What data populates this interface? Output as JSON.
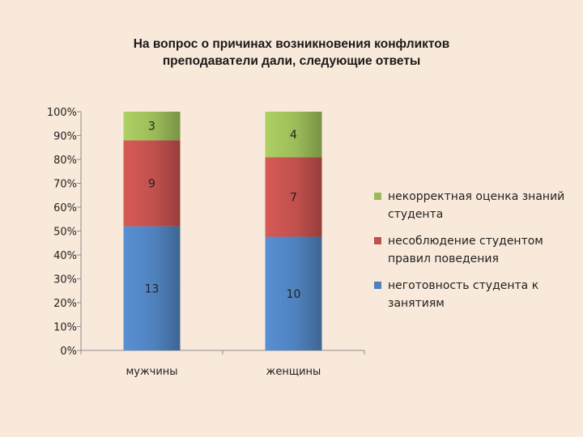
{
  "title_lines": [
    "На вопрос о причинах возникновения конфликтов",
    "преподаватели дали, следующие ответы"
  ],
  "chart_data": {
    "type": "bar",
    "stacked": "percent",
    "categories": [
      "мужчины",
      "женщины"
    ],
    "series": [
      {
        "name": "неготовность студента к занятиям",
        "values": [
          13,
          10
        ],
        "color": "#4f81bd"
      },
      {
        "name": "несоблюдение студентом правил поведения",
        "values": [
          9,
          7
        ],
        "color": "#c0504d"
      },
      {
        "name": "некорректная оценка знаний студента",
        "values": [
          3,
          4
        ],
        "color": "#9bbb59"
      }
    ],
    "y_ticks": [
      "0%",
      "10%",
      "20%",
      "30%",
      "40%",
      "50%",
      "60%",
      "70%",
      "80%",
      "90%",
      "100%"
    ],
    "ylim": [
      0,
      100
    ],
    "grid": false,
    "legend_position": "right"
  }
}
